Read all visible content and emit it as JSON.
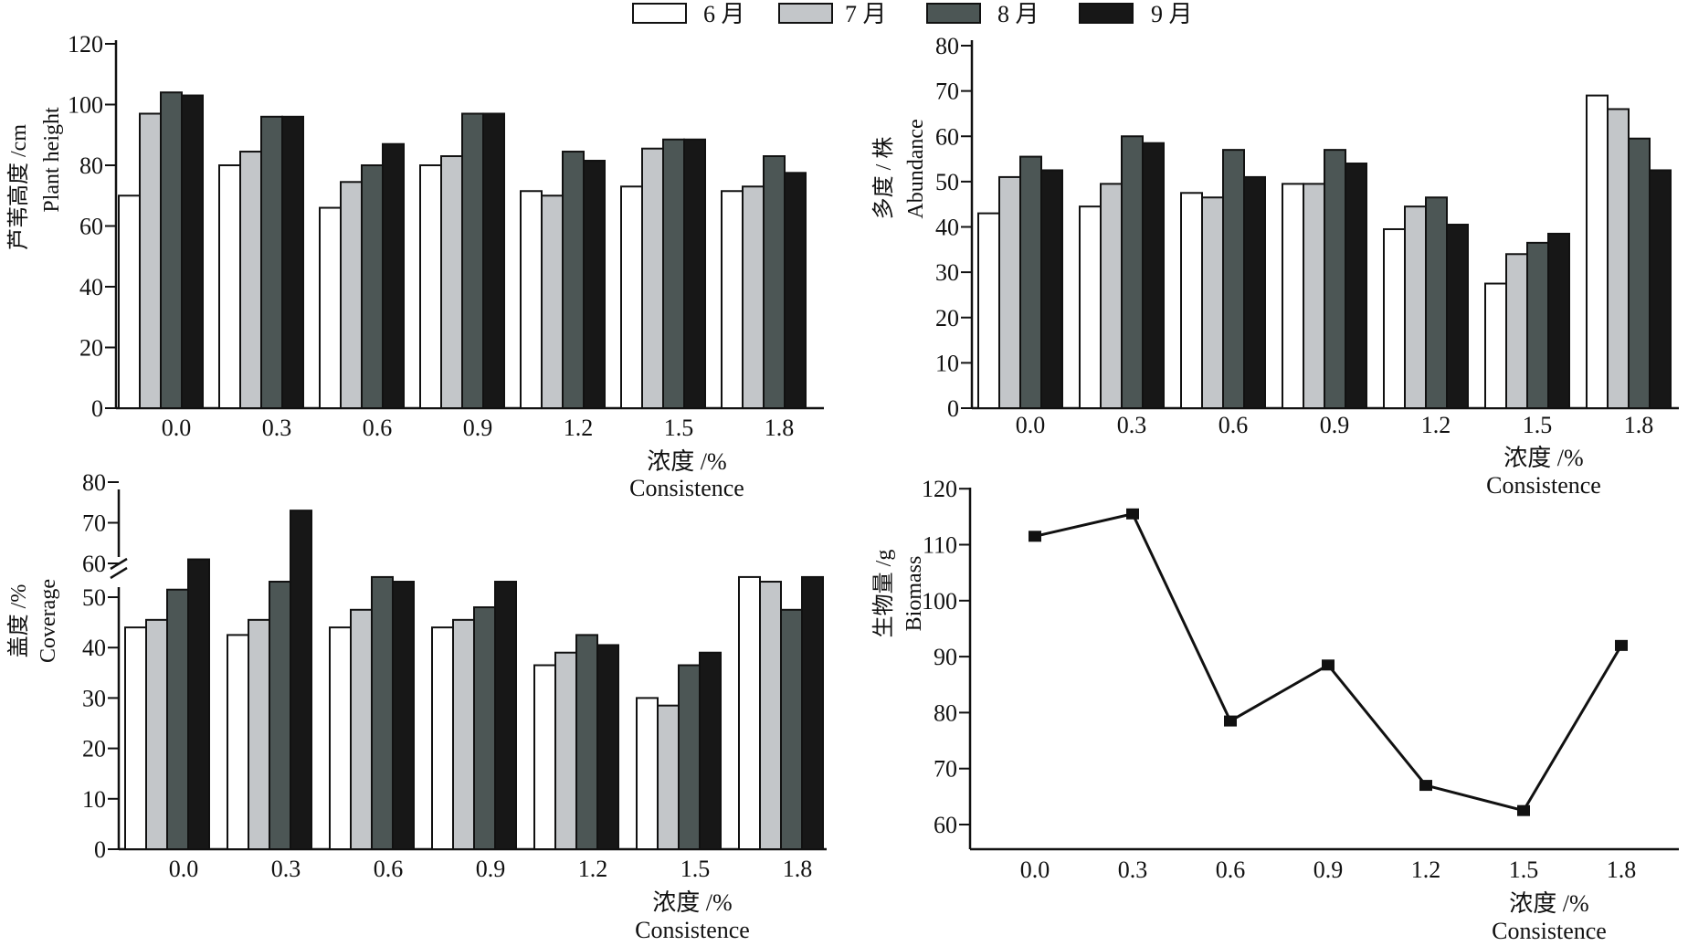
{
  "legend": [
    {
      "label": "6 月",
      "color": "#ffffff"
    },
    {
      "label": "7 月",
      "color": "#c3c6c9"
    },
    {
      "label": "8 月",
      "color": "#4c5655"
    },
    {
      "label": "9 月",
      "color": "#171717"
    }
  ],
  "chart_data": [
    {
      "type": "bar",
      "id": "height",
      "categories": [
        "0.0",
        "0.3",
        "0.6",
        "0.9",
        "1.2",
        "1.5",
        "1.8"
      ],
      "series": [
        {
          "name": "6 月",
          "values": [
            70,
            80,
            66,
            80,
            71.5,
            73,
            71.5
          ]
        },
        {
          "name": "7 月",
          "values": [
            97,
            84.5,
            74.5,
            83,
            70,
            85.5,
            73
          ]
        },
        {
          "name": "8 月",
          "values": [
            104,
            96,
            80,
            97,
            84.5,
            88.5,
            83
          ]
        },
        {
          "name": "9 月",
          "values": [
            103,
            96,
            87,
            97,
            81.5,
            88.5,
            77.5
          ]
        }
      ],
      "ylim": [
        0,
        120
      ],
      "yticks": [
        0,
        20,
        40,
        60,
        80,
        100,
        120
      ],
      "ylabel_cn": "芦苇高度 /cm",
      "ylabel_en": "Plant height",
      "xlabel_cn": "浓度 /%",
      "xlabel_en": "Consistence"
    },
    {
      "type": "bar",
      "id": "abundance",
      "categories": [
        "0.0",
        "0.3",
        "0.6",
        "0.9",
        "1.2",
        "1.5",
        "1.8"
      ],
      "series": [
        {
          "name": "6 月",
          "values": [
            43,
            44.5,
            47.5,
            49.5,
            39.5,
            27.5,
            69
          ]
        },
        {
          "name": "7 月",
          "values": [
            51,
            49.5,
            46.5,
            49.5,
            44.5,
            34,
            66
          ]
        },
        {
          "name": "8 月",
          "values": [
            55.5,
            60,
            57,
            57,
            46.5,
            36.5,
            59.5
          ]
        },
        {
          "name": "9 月",
          "values": [
            52.5,
            58.5,
            51,
            54,
            40.5,
            38.5,
            52.5
          ]
        }
      ],
      "ylim": [
        0,
        80
      ],
      "yticks": [
        0,
        10,
        20,
        30,
        40,
        50,
        60,
        70,
        80
      ],
      "ylabel_cn": "多度 / 株",
      "ylabel_en": "Abundance",
      "xlabel_cn": "浓度 /%",
      "xlabel_en": "Consistence"
    },
    {
      "type": "bar",
      "id": "coverage",
      "axis_break": "between 55 and 60",
      "categories": [
        "0.0",
        "0.3",
        "0.6",
        "0.9",
        "1.2",
        "1.5",
        "1.8"
      ],
      "series": [
        {
          "name": "6 月",
          "values": [
            44,
            42.5,
            44,
            44,
            36.5,
            30,
            54
          ]
        },
        {
          "name": "7 月",
          "values": [
            45.5,
            45.5,
            47.5,
            45.5,
            39,
            28.5,
            55.5
          ]
        },
        {
          "name": "8 月",
          "values": [
            51.5,
            55.5,
            54,
            48,
            42.5,
            36.5,
            47.5
          ]
        },
        {
          "name": "9 月",
          "values": [
            61,
            73,
            55.5,
            55.5,
            40.5,
            39,
            54
          ]
        }
      ],
      "yticks": [
        0,
        10,
        20,
        30,
        40,
        50,
        60,
        70,
        80
      ],
      "ylabel_cn": "盖度 /%",
      "ylabel_en": "Coverage",
      "xlabel_cn": "浓度 /%",
      "xlabel_en": "Consistence"
    },
    {
      "type": "line",
      "id": "biomass",
      "categories": [
        "0.0",
        "0.3",
        "0.6",
        "0.9",
        "1.2",
        "1.5",
        "1.8"
      ],
      "values": [
        111.5,
        115.5,
        78.5,
        88.5,
        67,
        62.5,
        92
      ],
      "ylim": [
        55,
        120
      ],
      "yticks": [
        60,
        70,
        80,
        90,
        100,
        110,
        120
      ],
      "ylabel_cn": "生物量 /g",
      "ylabel_en": "Biomass",
      "xlabel_cn": "浓度 /%",
      "xlabel_en": "Consistence"
    }
  ]
}
